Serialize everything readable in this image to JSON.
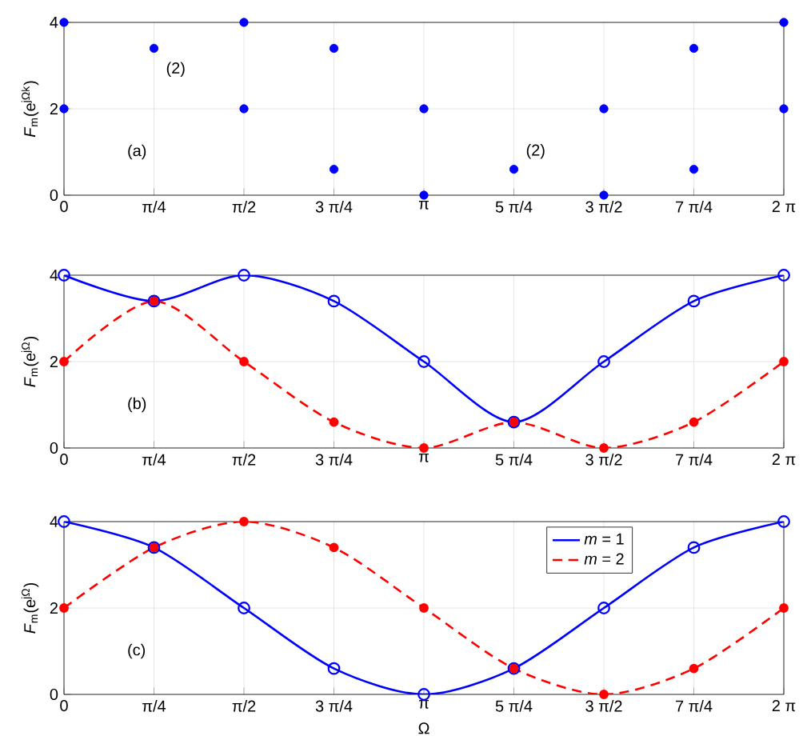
{
  "chart_data": [
    {
      "type": "scatter",
      "ylabel": "*F*$_{m}$(e$^{jΩk}$)",
      "x": [
        0,
        0,
        0.7854,
        1.5708,
        1.5708,
        2.3562,
        2.3562,
        3.1416,
        3.1416,
        3.927,
        4.7124,
        4.7124,
        5.4978,
        5.4978,
        6.2832,
        6.2832
      ],
      "values": [
        4,
        2,
        3.4,
        4,
        2,
        3.4,
        0.6,
        2,
        0,
        0.6,
        2,
        0,
        3.4,
        0.6,
        4,
        2
      ],
      "color": "#0000ff",
      "xlim": [
        0,
        6.2832
      ],
      "ylim": [
        0,
        4
      ],
      "yticks": [
        0,
        2,
        4
      ],
      "xticks": [
        {
          "value": 0,
          "label": "0"
        },
        {
          "value": 0.7854,
          "label": "π/4"
        },
        {
          "value": 1.5708,
          "label": "π/2"
        },
        {
          "value": 2.3562,
          "label": "3 π/4"
        },
        {
          "value": 3.1416,
          "label": "π"
        },
        {
          "value": 3.927,
          "label": "5 π/4"
        },
        {
          "value": 4.7124,
          "label": "3 π/2"
        },
        {
          "value": 5.4978,
          "label": "7 π/4"
        },
        {
          "value": 6.2832,
          "label": "2 π"
        }
      ],
      "grid": true,
      "annotations": [
        "(a)",
        {
          "text": "(2)",
          "x": 0.7854,
          "y": 3.4
        },
        {
          "text": "(2)",
          "x": 3.927,
          "y": 0.6
        }
      ]
    },
    {
      "type": "line",
      "ylabel": "*F*$_{m}$(e$^{jΩ}$)",
      "x": [
        0,
        0.7854,
        1.5708,
        2.3562,
        3.1416,
        3.927,
        4.7124,
        5.4978,
        6.2832
      ],
      "series": [
        {
          "color": "#0000ff",
          "values": [
            4,
            3.4,
            4,
            3.4,
            2,
            0.6,
            2,
            3.4,
            4
          ],
          "line_style": "solid",
          "marker": "circle"
        },
        {
          "color": "#ff0000",
          "values": [
            2,
            3.4,
            2,
            0.6,
            0,
            0.6,
            0,
            0.6,
            2
          ],
          "line_style": "dashed",
          "marker": "circle"
        }
      ],
      "xlim": [
        0,
        6.2832
      ],
      "ylim": [
        0,
        4
      ],
      "yticks": [
        0,
        2,
        4
      ],
      "xticks": [
        {
          "value": 0,
          "label": "0"
        },
        {
          "value": 0.7854,
          "label": "π/4"
        },
        {
          "value": 1.5708,
          "label": "π/2"
        },
        {
          "value": 2.3562,
          "label": "3 π/4"
        },
        {
          "value": 3.1416,
          "label": "π"
        },
        {
          "value": 3.927,
          "label": "5 π/4"
        },
        {
          "value": 4.7124,
          "label": "3 π/2"
        },
        {
          "value": 5.4978,
          "label": "7 π/4"
        },
        {
          "value": 6.2832,
          "label": "2 π"
        }
      ],
      "grid": true,
      "annotations": [
        "(b)"
      ]
    },
    {
      "type": "line",
      "ylabel": "*F*$_{m}$(e$^{jΩ}$)",
      "xlabel": "Ω",
      "x": [
        0,
        0.7854,
        1.5708,
        2.3562,
        3.1416,
        3.927,
        4.7124,
        5.4978,
        6.2832
      ],
      "series": [
        {
          "name": "*m* = 1",
          "color": "#0000ff",
          "values": [
            4,
            3.4,
            2,
            0.6,
            0,
            0.6,
            2,
            3.4,
            4
          ],
          "line_style": "solid",
          "marker": "circle"
        },
        {
          "name": "*m* = 2",
          "color": "#ff0000",
          "values": [
            2,
            3.4,
            4,
            3.4,
            2,
            0.6,
            0,
            0.6,
            2
          ],
          "line_style": "dashed",
          "marker": "circle"
        }
      ],
      "xlim": [
        0,
        6.2832
      ],
      "ylim": [
        0,
        4
      ],
      "yticks": [
        0,
        2,
        4
      ],
      "xticks": [
        {
          "value": 0,
          "label": "0"
        },
        {
          "value": 0.7854,
          "label": "π/4"
        },
        {
          "value": 1.5708,
          "label": "π/2"
        },
        {
          "value": 2.3562,
          "label": "3 π/4"
        },
        {
          "value": 3.1416,
          "label": "π"
        },
        {
          "value": 3.927,
          "label": "5 π/4"
        },
        {
          "value": 4.7124,
          "label": "3 π/2"
        },
        {
          "value": 5.4978,
          "label": "7 π/4"
        },
        {
          "value": 6.2832,
          "label": "2 π"
        }
      ],
      "grid": true,
      "legend": "top right",
      "annotations": [
        "(c)"
      ]
    }
  ]
}
